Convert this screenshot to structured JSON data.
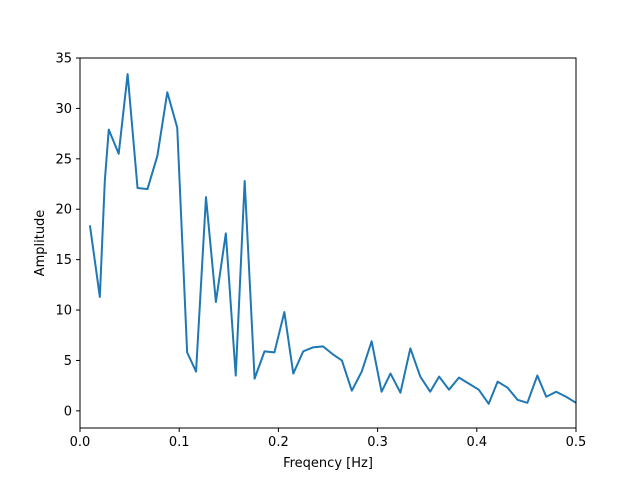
{
  "chart_data": {
    "type": "line",
    "title": "",
    "xlabel": "Freqency [Hz]",
    "ylabel": "Amplitude",
    "xlim": [
      0,
      0.5
    ],
    "ylim": [
      -1.7,
      35
    ],
    "grid": false,
    "x_ticks": [
      0.0,
      0.1,
      0.2,
      0.3,
      0.4,
      0.5
    ],
    "x_tick_labels": [
      "0.0",
      "0.1",
      "0.2",
      "0.3",
      "0.4",
      "0.5"
    ],
    "y_ticks": [
      0,
      5,
      10,
      15,
      20,
      25,
      30,
      35
    ],
    "y_tick_labels": [
      "0",
      "5",
      "10",
      "15",
      "20",
      "25",
      "30",
      "35"
    ],
    "series": [
      {
        "color": "#1f77b4",
        "x": [
          0.01,
          0.02,
          0.025,
          0.029,
          0.039,
          0.048,
          0.058,
          0.068,
          0.078,
          0.088,
          0.098,
          0.108,
          0.117,
          0.127,
          0.137,
          0.147,
          0.157,
          0.166,
          0.176,
          0.186,
          0.196,
          0.206,
          0.215,
          0.225,
          0.235,
          0.245,
          0.255,
          0.264,
          0.274,
          0.284,
          0.294,
          0.304,
          0.313,
          0.323,
          0.333,
          0.343,
          0.353,
          0.362,
          0.372,
          0.382,
          0.392,
          0.402,
          0.412,
          0.421,
          0.431,
          0.441,
          0.451,
          0.461,
          0.47,
          0.48,
          0.49,
          0.5
        ],
        "y": [
          18.4,
          11.3,
          22.8,
          27.9,
          25.5,
          33.4,
          22.1,
          22.0,
          25.3,
          31.6,
          28.1,
          5.8,
          3.9,
          21.2,
          10.8,
          17.6,
          3.5,
          22.8,
          3.2,
          5.9,
          5.8,
          9.8,
          3.7,
          5.9,
          6.3,
          6.4,
          5.6,
          5.0,
          2.0,
          3.9,
          6.9,
          1.9,
          3.7,
          1.8,
          6.2,
          3.4,
          1.9,
          3.4,
          2.1,
          3.3,
          2.7,
          2.1,
          0.7,
          2.9,
          2.3,
          1.1,
          0.8,
          3.5,
          1.4,
          1.9,
          1.4,
          0.8
        ]
      }
    ]
  }
}
